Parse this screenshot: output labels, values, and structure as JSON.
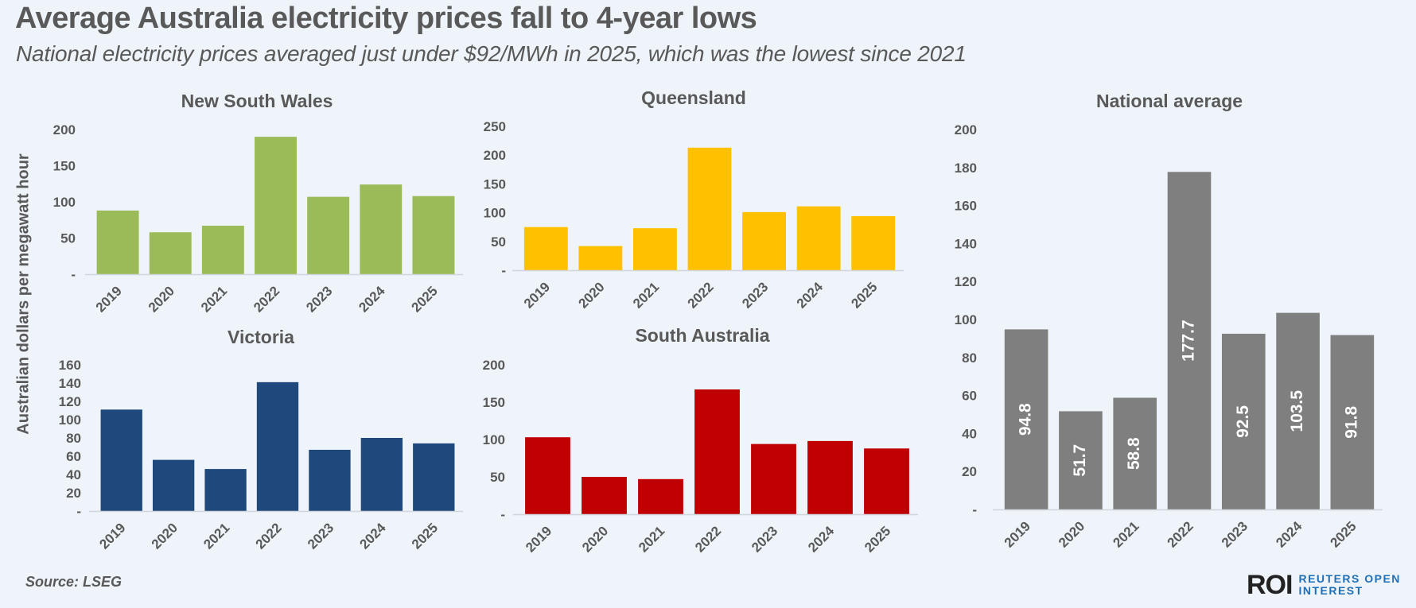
{
  "header": {
    "title": "Average Australia electricity prices fall to 4-year lows",
    "subtitle": "National electricity prices averaged just under $92/MWh in 2025, which was the lowest since 2021"
  },
  "footer": {
    "source": "Source:  LSEG",
    "logo_mark": "ROI",
    "logo_line1": "REUTERS OPEN",
    "logo_line2": "INTEREST"
  },
  "shared_ylabel": "Australian dollars per megawatt hour",
  "chart_data": [
    {
      "id": "nsw",
      "type": "bar",
      "title": "New South Wales",
      "categories": [
        "2019",
        "2020",
        "2021",
        "2022",
        "2023",
        "2024",
        "2025"
      ],
      "values": [
        88,
        58,
        67,
        190,
        107,
        124,
        108
      ],
      "yticks": [
        0,
        50,
        100,
        150,
        200
      ],
      "ytick_labels": [
        "-",
        "50",
        "100",
        "150",
        "200"
      ],
      "ylim": [
        0,
        200
      ],
      "color": "#9bbb59",
      "xlabel": "",
      "ylabel": "Australian dollars per megawatt hour",
      "data_labels": false
    },
    {
      "id": "qld",
      "type": "bar",
      "title": "Queensland",
      "categories": [
        "2019",
        "2020",
        "2021",
        "2022",
        "2023",
        "2024",
        "2025"
      ],
      "values": [
        75,
        42,
        73,
        213,
        101,
        111,
        94
      ],
      "yticks": [
        0,
        50,
        100,
        150,
        200,
        250
      ],
      "ytick_labels": [
        "-",
        "50",
        "100",
        "150",
        "200",
        "250"
      ],
      "ylim": [
        0,
        250
      ],
      "color": "#ffc000",
      "xlabel": "",
      "ylabel": "",
      "data_labels": false
    },
    {
      "id": "vic",
      "type": "bar",
      "title": "Victoria",
      "categories": [
        "2019",
        "2020",
        "2021",
        "2022",
        "2023",
        "2024",
        "2025"
      ],
      "values": [
        111,
        56,
        46,
        141,
        67,
        80,
        74
      ],
      "yticks": [
        0,
        20,
        40,
        60,
        80,
        100,
        120,
        140,
        160
      ],
      "ytick_labels": [
        "-",
        "20",
        "40",
        "60",
        "80",
        "100",
        "120",
        "140",
        "160"
      ],
      "ylim": [
        0,
        160
      ],
      "color": "#1f497d",
      "xlabel": "",
      "ylabel": "Australian dollars per megawatt hour",
      "data_labels": false
    },
    {
      "id": "sa",
      "type": "bar",
      "title": "South Australia",
      "categories": [
        "2019",
        "2020",
        "2021",
        "2022",
        "2023",
        "2024",
        "2025"
      ],
      "values": [
        103,
        50,
        47,
        167,
        94,
        98,
        88
      ],
      "yticks": [
        0,
        50,
        100,
        150,
        200
      ],
      "ytick_labels": [
        "-",
        "50",
        "100",
        "150",
        "200"
      ],
      "ylim": [
        0,
        200
      ],
      "color": "#c00000",
      "xlabel": "",
      "ylabel": "",
      "data_labels": false
    },
    {
      "id": "national",
      "type": "bar",
      "title": "National average",
      "categories": [
        "2019",
        "2020",
        "2021",
        "2022",
        "2023",
        "2024",
        "2025"
      ],
      "values": [
        94.8,
        51.7,
        58.8,
        177.7,
        92.5,
        103.5,
        91.8
      ],
      "value_labels": [
        "94.8",
        "51.7",
        "58.8",
        "177.7",
        "92.5",
        "103.5",
        "91.8"
      ],
      "yticks": [
        0,
        20,
        40,
        60,
        80,
        100,
        120,
        140,
        160,
        180,
        200
      ],
      "ytick_labels": [
        "-",
        "20",
        "40",
        "60",
        "80",
        "100",
        "120",
        "140",
        "160",
        "180",
        "200"
      ],
      "ylim": [
        0,
        200
      ],
      "color": "#7f7f7f",
      "xlabel": "",
      "ylabel": "",
      "data_labels": true,
      "grid": false
    }
  ]
}
